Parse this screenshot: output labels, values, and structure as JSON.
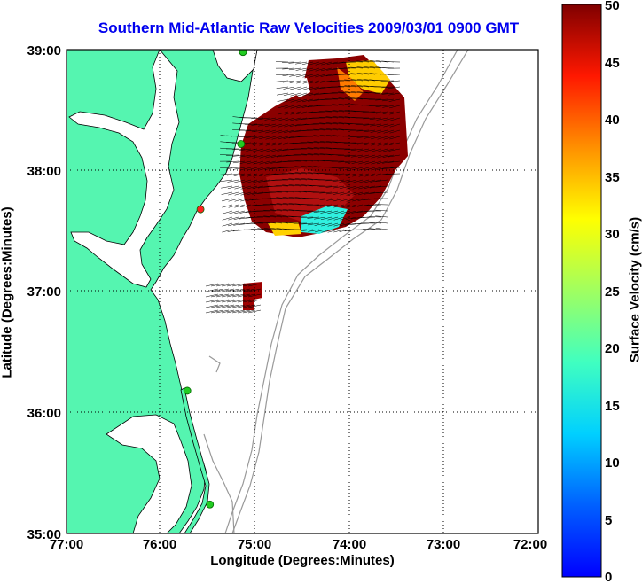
{
  "map": {
    "title": "Southern Mid-Atlantic Raw Velocities 2009/03/01 0900 GMT",
    "xlabel": "Longitude (Degrees:Minutes)",
    "ylabel": "Latitude (Degrees:Minutes)",
    "x_ticks": [
      "77:00",
      "76:00",
      "75:00",
      "74:00",
      "73:00",
      "72:00"
    ],
    "y_ticks": [
      "39:00",
      "38:00",
      "37:00",
      "36:00",
      "35:00"
    ],
    "lon_range": [
      -77,
      -72
    ],
    "lat_range": [
      35,
      39
    ],
    "colors": {
      "land": "#55f5b0",
      "bathymetry": "#999999",
      "grid": "#000000",
      "title": "#0000ee"
    }
  },
  "colorbar": {
    "label": "Surface Velocity (cm/s)",
    "ticks": [
      "50",
      "45",
      "40",
      "35",
      "30",
      "25",
      "20",
      "15",
      "10",
      "5",
      "0"
    ],
    "range": [
      0,
      50
    ],
    "colormap": "jet"
  },
  "stations": [
    {
      "lon": -75.13,
      "lat": 38.98,
      "color": "#22cc22"
    },
    {
      "lon": -75.15,
      "lat": 38.22,
      "color": "#22cc22"
    },
    {
      "lon": -75.58,
      "lat": 37.68,
      "color": "#ff2020"
    },
    {
      "lon": -75.72,
      "lat": 36.18,
      "color": "#22cc22"
    },
    {
      "lon": -75.48,
      "lat": 35.24,
      "color": "#22cc22"
    }
  ]
}
